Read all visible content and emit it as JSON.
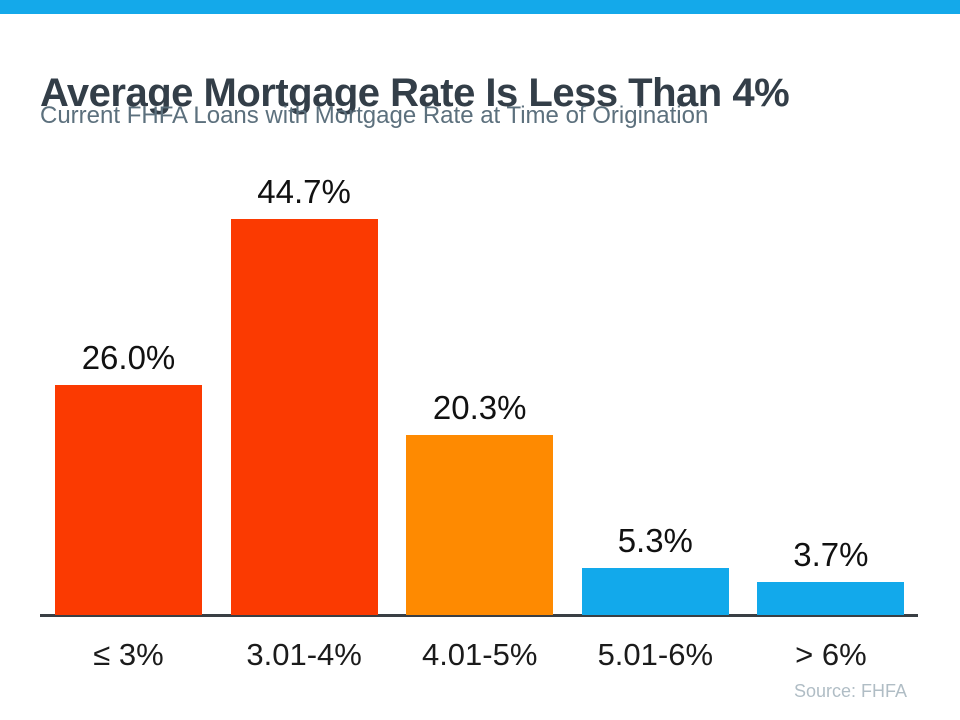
{
  "page": {
    "background_color": "#FFFFFF"
  },
  "top_stripe": {
    "color": "#14A9EA"
  },
  "header": {
    "title": "Average Mortgage Rate Is Less Than 4%",
    "title_color": "#333E48",
    "subtitle": "Current FHFA Loans with Mortgage Rate at Time of Origination",
    "subtitle_color": "#5C707D"
  },
  "chart_data": {
    "type": "bar",
    "title": "Average Mortgage Rate Is Less Than 4%",
    "subtitle": "Current FHFA Loans with Mortgage Rate at Time of Origination",
    "categories": [
      "≤ 3%",
      "3.01-4%",
      "4.01-5%",
      "5.01-6%",
      "> 6%"
    ],
    "values": [
      26.0,
      44.7,
      20.3,
      5.3,
      3.7
    ],
    "value_labels": [
      "26.0%",
      "44.7%",
      "20.3%",
      "5.3%",
      "3.7%"
    ],
    "bar_colors": [
      "#FB3A01",
      "#FB3A01",
      "#FE8A01",
      "#12A9EB",
      "#12A9EB"
    ],
    "xlabel": "",
    "ylabel": "",
    "ylim": [
      0,
      50
    ],
    "grid": false,
    "legend": false,
    "value_label_color": "#111111",
    "category_label_color": "#1B1B1B",
    "axis_line_color": "#3A3F44"
  },
  "footer": {
    "source": "Source: FHFA",
    "source_color": "#B0BDC5"
  }
}
